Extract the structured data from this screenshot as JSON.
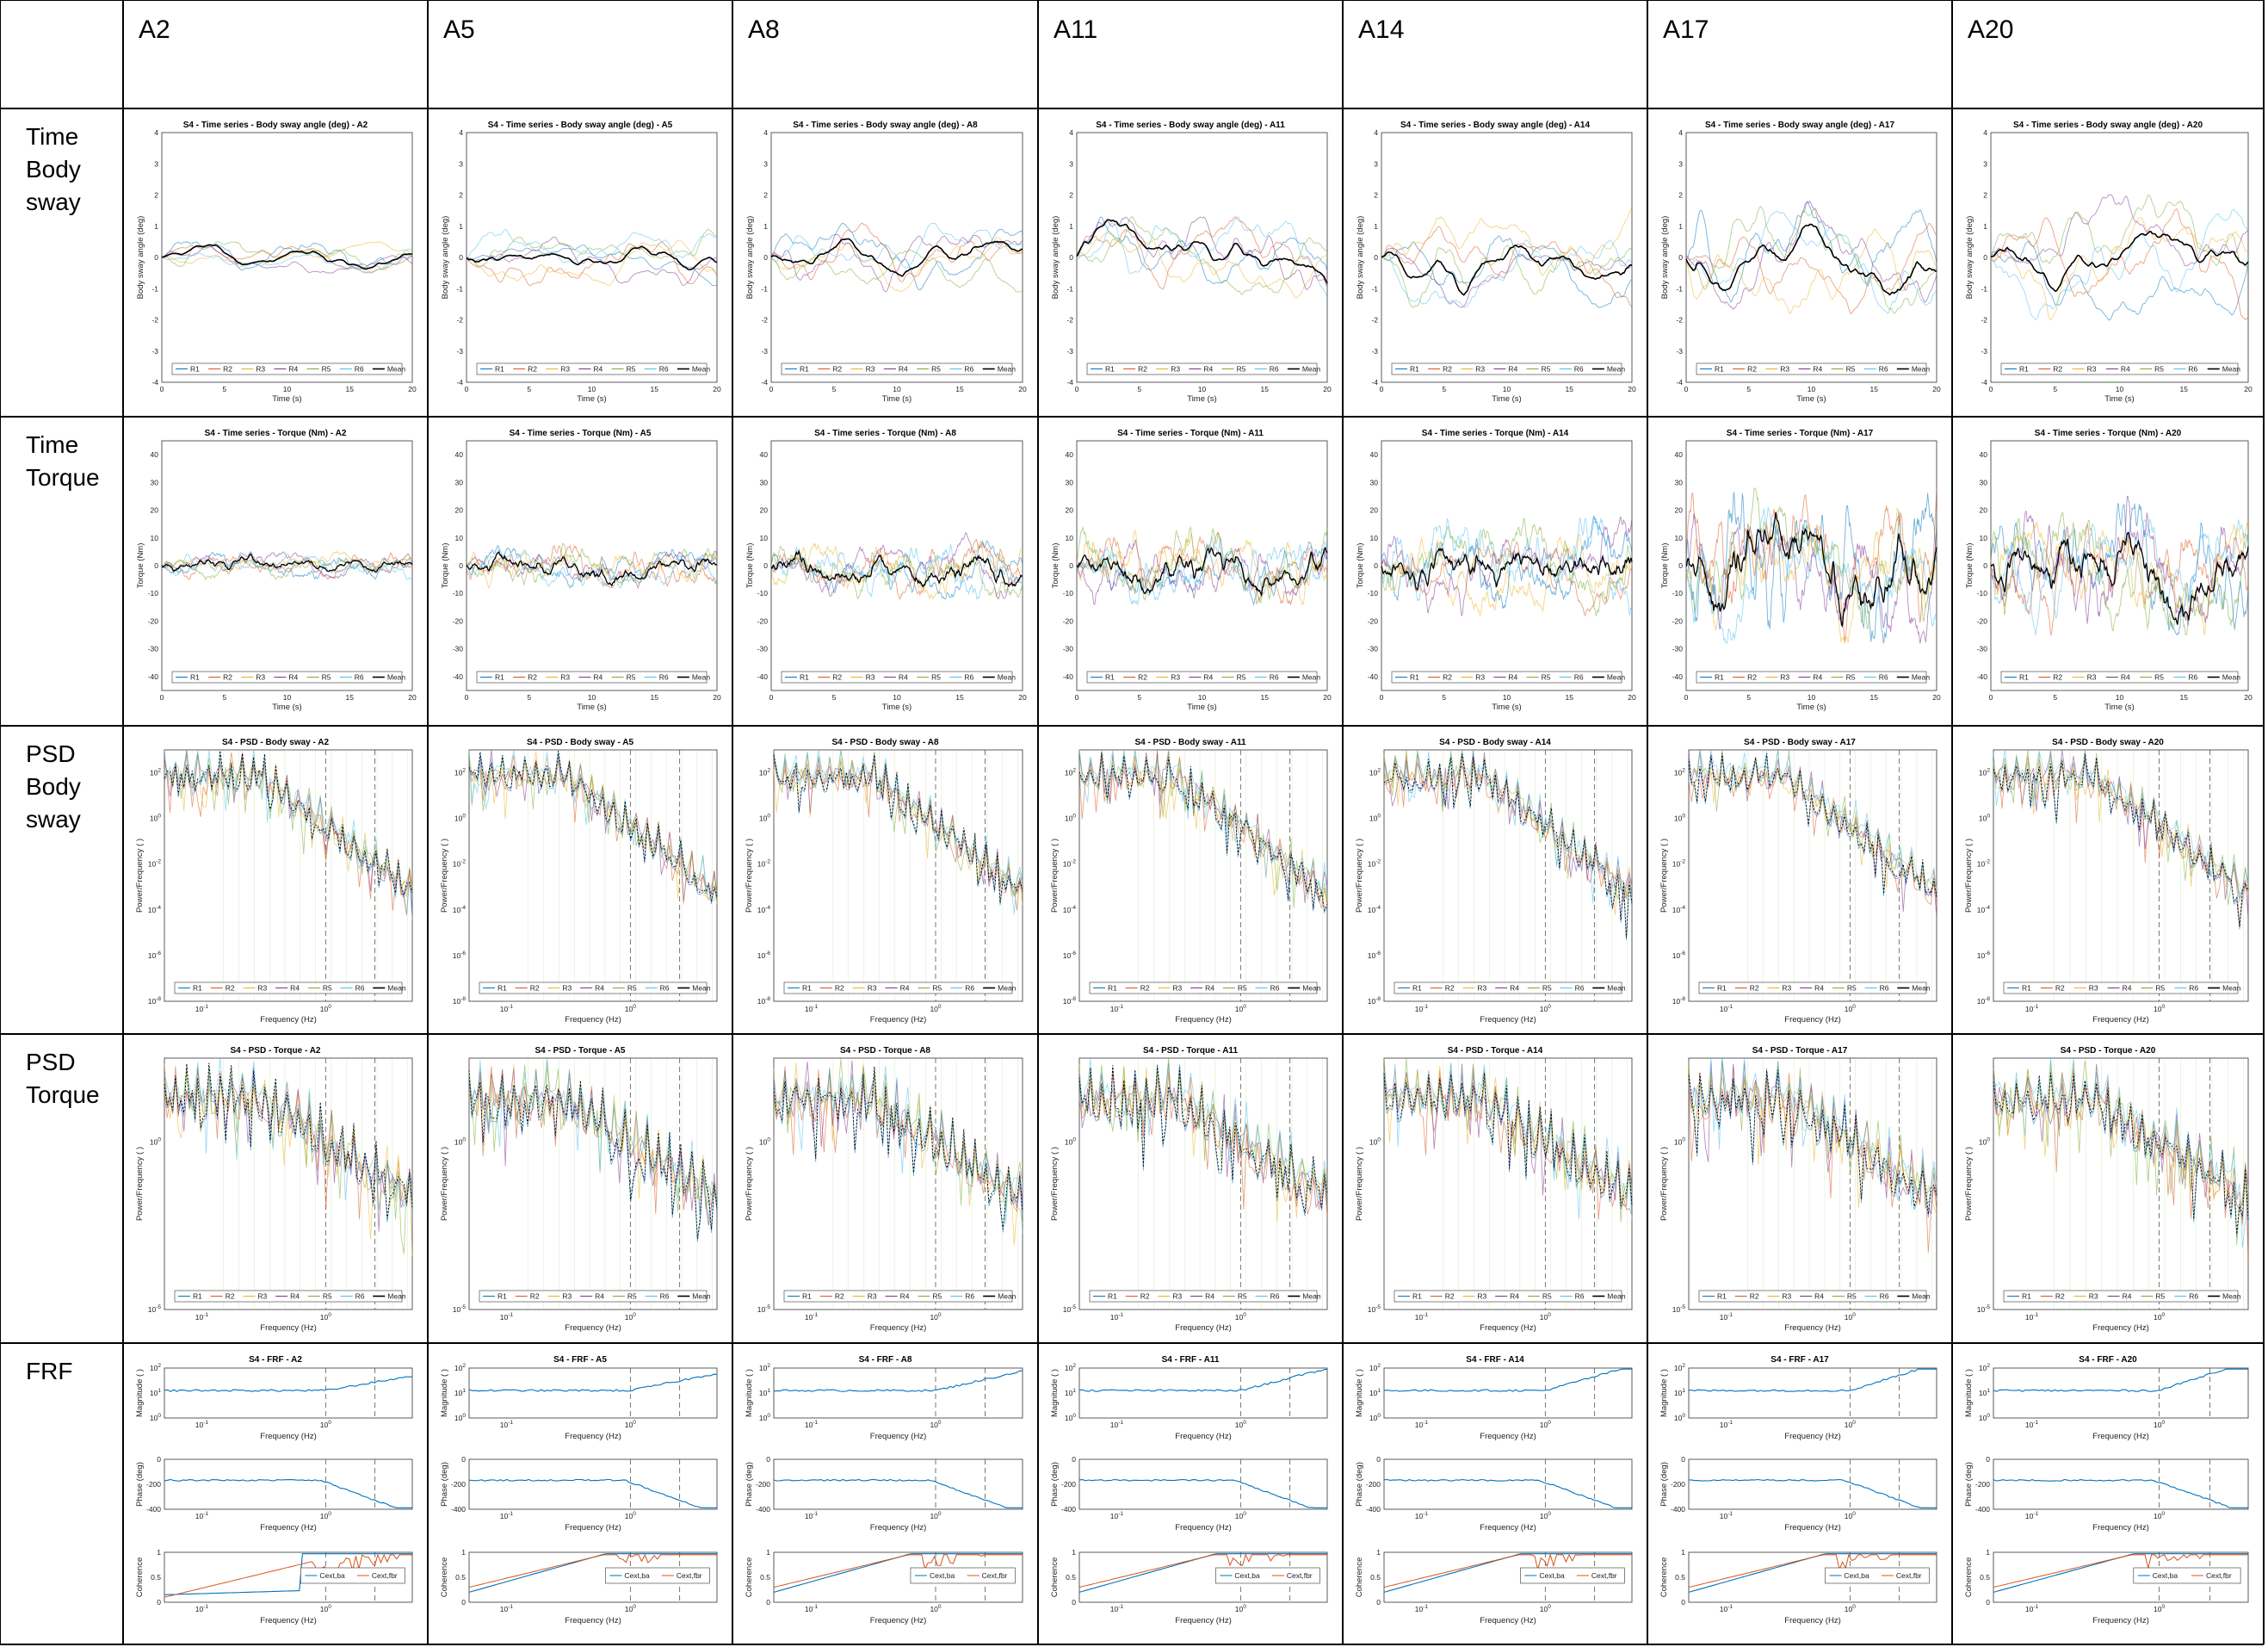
{
  "columns": [
    "A2",
    "A5",
    "A8",
    "A11",
    "A14",
    "A17",
    "A20"
  ],
  "rows": [
    {
      "id": "ts_sway",
      "label": [
        "Time",
        "Body",
        "sway"
      ]
    },
    {
      "id": "ts_torque",
      "label": [
        "Time",
        "Torque"
      ]
    },
    {
      "id": "psd_sway",
      "label": [
        "PSD",
        "Body",
        "sway"
      ]
    },
    {
      "id": "psd_torque",
      "label": [
        "PSD",
        "Torque"
      ]
    },
    {
      "id": "frf",
      "label": [
        "FRF"
      ]
    }
  ],
  "colors": {
    "R1": "#0072BD",
    "R2": "#D95319",
    "R3": "#EDB120",
    "R4": "#7E2F8E",
    "R5": "#77AC30",
    "R6": "#4DBEEE",
    "Mean": "#000000"
  },
  "chart_data": [
    {
      "type": "line",
      "row": "ts_sway",
      "title_prefix": "S4 - Time series - Body sway angle (deg) - ",
      "xlabel": "Time (s)",
      "ylabel": "Body sway angle (deg)",
      "xlim": [
        0,
        20
      ],
      "ylim": [
        -4,
        4
      ],
      "xticks": [
        "0",
        "5",
        "10",
        "15",
        "20"
      ],
      "yticks": [
        "-4",
        "-3",
        "-2",
        "-1",
        "0",
        "1",
        "2",
        "3",
        "4"
      ],
      "legend": [
        "R1",
        "R2",
        "R3",
        "R4",
        "R5",
        "R6",
        "Mean"
      ],
      "legend_location": "bottom",
      "amplitude_by_column": [
        0.5,
        0.9,
        1.1,
        1.3,
        1.6,
        1.8,
        2.0
      ]
    },
    {
      "type": "line",
      "row": "ts_torque",
      "title_prefix": "S4 - Time series - Torque (Nm) - ",
      "xlabel": "Time (s)",
      "ylabel": "Torque (Nm)",
      "xlim": [
        0,
        20
      ],
      "ylim": [
        -45,
        45
      ],
      "xticks": [
        "0",
        "5",
        "10",
        "15",
        "20"
      ],
      "yticks": [
        "-40",
        "-30",
        "-20",
        "-10",
        "0",
        "10",
        "20",
        "30",
        "40"
      ],
      "legend": [
        "R1",
        "R2",
        "R3",
        "R4",
        "R5",
        "R6",
        "Mean"
      ],
      "legend_location": "bottom",
      "amplitude_by_column": [
        5,
        8,
        12,
        14,
        18,
        28,
        25
      ]
    },
    {
      "type": "line",
      "row": "psd_sway",
      "title_prefix": "S4 - PSD - Body sway - ",
      "xlabel": "Frequency (Hz)",
      "ylabel": "Power/Frequency ( )",
      "xscale": "log",
      "yscale": "log",
      "xticks": [
        "10-1",
        "100"
      ],
      "yticks": [
        "10-8",
        "10-6",
        "10-4",
        "10-2",
        "100",
        "102"
      ],
      "legend": [
        "R1",
        "R2",
        "R3",
        "R4",
        "R5",
        "R6",
        "Mean"
      ],
      "legend_location": "bottom"
    },
    {
      "type": "line",
      "row": "psd_torque",
      "title_prefix": "S4 - PSD - Torque - ",
      "xlabel": "Frequency (Hz)",
      "ylabel": "Power/Frequency ( )",
      "xscale": "log",
      "yscale": "log",
      "xticks": [
        "10-1",
        "100"
      ],
      "yticks": [
        "10-5",
        "100"
      ],
      "legend": [
        "R1",
        "R2",
        "R3",
        "R4",
        "R5",
        "R6",
        "Mean"
      ],
      "legend_location": "bottom"
    },
    {
      "type": "line",
      "row": "frf",
      "title_prefix": "S4 - FRF - ",
      "panels": [
        {
          "ylabel": "Magnitude ( )",
          "xlabel": "Frequency (Hz)",
          "yticks": [
            "100",
            "101",
            "102"
          ]
        },
        {
          "ylabel": "Phase (deg)",
          "xlabel": "Frequency (Hz)",
          "yticks": [
            "0",
            "-200",
            "-400"
          ]
        },
        {
          "ylabel": "Coherence",
          "xlabel": "Frequency (Hz)",
          "yticks": [
            "0",
            "0.5",
            "1"
          ],
          "legend": [
            "Cext,ba",
            "Cext,fbr"
          ]
        }
      ],
      "xticks": [
        "10-1",
        "100"
      ]
    }
  ]
}
